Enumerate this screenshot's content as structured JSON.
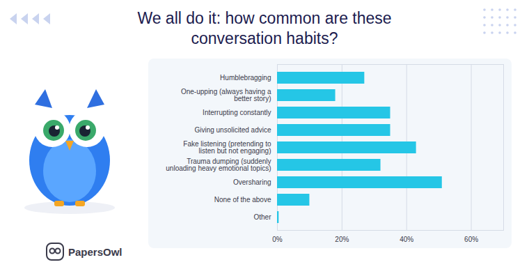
{
  "chart_data": {
    "type": "bar",
    "orientation": "horizontal",
    "title": "We all do it: how common are these conversation habits?",
    "brand": "PapersOwl",
    "categories": [
      "Humblebragging",
      "One-upping (always having a\nbetter story)",
      "Interrupting constantly",
      "Giving unsolicited advice",
      "Fake listening (pretending to\nlisten but not engaging)",
      "Trauma dumping (suddenly\nunloading heavy emotional topics)",
      "Oversharing",
      "None of the above",
      "Other"
    ],
    "values": [
      27,
      18,
      35,
      35,
      43,
      32,
      51,
      10,
      0.5
    ],
    "color": "#25c6e6",
    "xlim": [
      0,
      70
    ],
    "xticks": [
      {
        "value": 0,
        "label": "0%"
      },
      {
        "value": 20,
        "label": "20%"
      },
      {
        "value": 40,
        "label": "40%"
      },
      {
        "value": 60,
        "label": "60%"
      }
    ],
    "grid": true
  }
}
